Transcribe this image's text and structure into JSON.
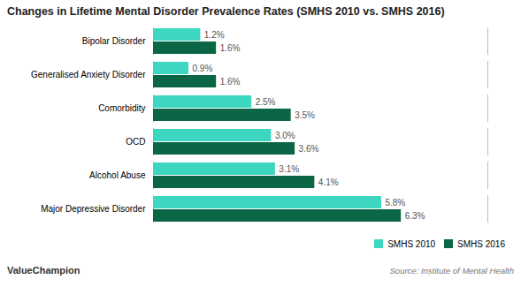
{
  "chart_data": {
    "type": "bar",
    "orientation": "horizontal",
    "title": "Changes in Lifetime Mental Disorder Prevalence Rates (SMHS 2010 vs. SMHS 2016)",
    "categories": [
      "Major Depressive Disorder",
      "Alcohol Abuse",
      "OCD",
      "Comorbidity",
      "Generalised Anxiety Disorder",
      "Bipolar Disorder"
    ],
    "series": [
      {
        "name": "SMHS 2010",
        "color": "#3DD6C0",
        "values": [
          5.8,
          3.1,
          3.0,
          2.5,
          0.9,
          1.2
        ],
        "value_labels": [
          "5.8%",
          "3.1%",
          "3.0%",
          "2.5%",
          "0.9%",
          "1.2%"
        ]
      },
      {
        "name": "SMHS 2016",
        "color": "#0A6644",
        "values": [
          6.3,
          4.1,
          3.6,
          3.5,
          1.6,
          1.6
        ],
        "value_labels": [
          "6.3%",
          "4.1%",
          "3.6%",
          "3.5%",
          "1.6%",
          "1.6%"
        ]
      }
    ],
    "xlim": [
      0,
      8.5
    ],
    "xticks": [],
    "tick_labels": "y",
    "data_labels": true,
    "grid": false,
    "legend": "lower right",
    "annotations": [
      "ValueChampion",
      "Source: Institute of Mental Health"
    ]
  }
}
